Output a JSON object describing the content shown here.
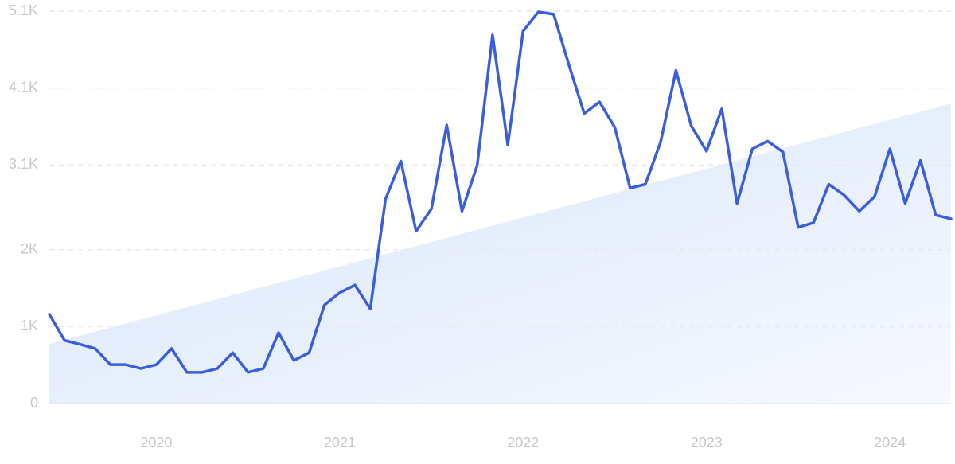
{
  "chart_data": {
    "type": "line",
    "x": [
      "2019-06",
      "2019-07",
      "2019-08",
      "2019-09",
      "2019-10",
      "2019-11",
      "2019-12",
      "2020-01",
      "2020-02",
      "2020-03",
      "2020-04",
      "2020-05",
      "2020-06",
      "2020-07",
      "2020-08",
      "2020-09",
      "2020-10",
      "2020-11",
      "2020-12",
      "2021-01",
      "2021-02",
      "2021-03",
      "2021-04",
      "2021-05",
      "2021-06",
      "2021-07",
      "2021-08",
      "2021-09",
      "2021-10",
      "2021-11",
      "2021-12",
      "2022-01",
      "2022-02",
      "2022-03",
      "2022-04",
      "2022-05",
      "2022-06",
      "2022-07",
      "2022-08",
      "2022-09",
      "2022-10",
      "2022-11",
      "2022-12",
      "2023-01",
      "2023-02",
      "2023-03",
      "2023-04",
      "2023-05",
      "2023-06",
      "2023-07",
      "2023-08",
      "2023-09",
      "2023-10",
      "2023-11",
      "2023-12",
      "2024-01",
      "2024-02",
      "2024-03",
      "2024-04",
      "2024-05"
    ],
    "series": [
      {
        "color": "#3a5fdc",
        "values": [
          1160,
          820,
          770,
          715,
          505,
          505,
          455,
          505,
          715,
          405,
          405,
          455,
          660,
          405,
          455,
          920,
          560,
          660,
          1280,
          1440,
          1540,
          1230,
          2660,
          3150,
          2240,
          2530,
          3620,
          2500,
          3100,
          4790,
          3360,
          4840,
          5090,
          5060,
          4400,
          3770,
          3920,
          3590,
          2800,
          2850,
          3400,
          4330,
          3610,
          3280,
          3830,
          2600,
          3310,
          3410,
          3270,
          2290,
          2350,
          2850,
          2710,
          2500,
          2690,
          3310,
          2600,
          3160,
          2450,
          2400
        ]
      }
    ],
    "trend": [
      775,
      3900
    ],
    "xlim": [
      "2019-06",
      "2024-05"
    ],
    "xticks": [
      "2020",
      "2021",
      "2022",
      "2023",
      "2024"
    ],
    "ylim": [
      0,
      5100
    ],
    "yticks": [
      0,
      {
        "value": 1000,
        "label": "1K"
      },
      {
        "value": 2000,
        "label": "2K"
      },
      {
        "value": 3100,
        "label": "3.1K"
      },
      {
        "value": 4100,
        "label": "4.1K"
      },
      {
        "value": 5100,
        "label": "5.1K"
      }
    ],
    "grid": true
  }
}
